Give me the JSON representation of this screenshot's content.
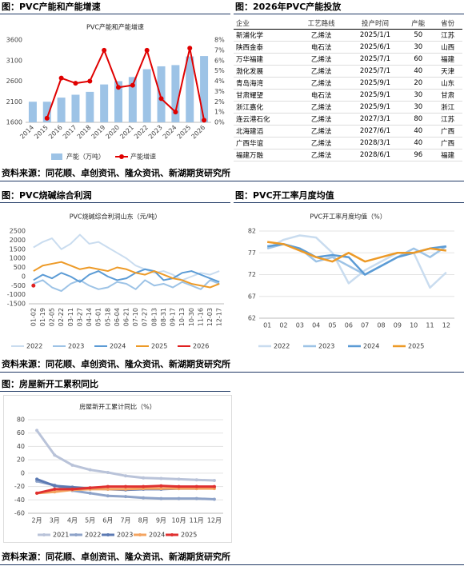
{
  "headings": [
    "图：PVC产能和产能增速",
    "图：2026年PVC产能投放",
    "图：PVC烧碱综合利润",
    "图：PVC开工率月度均值",
    "图：房屋新开工累积同比"
  ],
  "source": "资料来源：同花顺、卓创资讯、隆众资讯、新湖期货研究所",
  "table": {
    "columns": [
      "企业",
      "工艺路线",
      "投产时间",
      "产能",
      "省份"
    ],
    "rows": [
      [
        "新浦化学",
        "乙烯法",
        "2025/1/1",
        50,
        "江苏"
      ],
      [
        "陕西金泰",
        "电石法",
        "2025/6/1",
        30,
        "山西"
      ],
      [
        "万华福建",
        "乙烯法",
        "2025/7/1",
        60,
        "福建"
      ],
      [
        "渤化发展",
        "乙烯法",
        "2025/7/1",
        40,
        "天津"
      ],
      [
        "青岛海湾",
        "乙烯法",
        "2025/9/1",
        20,
        "山东"
      ],
      [
        "甘肃耀望",
        "电石法",
        "2025/9/1",
        30,
        "甘肃"
      ],
      [
        "浙江嘉化",
        "乙烯法",
        "2025/9/1",
        30,
        "浙江"
      ],
      [
        "连云港石化",
        "乙烯法",
        "2027/3/1",
        80,
        "江苏"
      ],
      [
        "北海建滔",
        "乙烯法",
        "2027/6/1",
        40,
        "广西"
      ],
      [
        "广西华谊",
        "乙烯法",
        "2028/3/1",
        40,
        "广西"
      ],
      [
        "福建万融",
        "乙烯法",
        "2028/6/1",
        96,
        "福建"
      ]
    ]
  },
  "chart_data": [
    {
      "type": "bar",
      "title": "PVC产能和产能增速",
      "grid": false,
      "markers": true,
      "categories": [
        "2014",
        "2015",
        "2016",
        "2017",
        "2018",
        "2019",
        "2020",
        "2021",
        "2022",
        "2023",
        "2024",
        "2025",
        "2026"
      ],
      "ylim": [
        1600,
        3600
      ],
      "yticks": [
        1600,
        2100,
        2600,
        3100,
        3600
      ],
      "y2lim": [
        0,
        8
      ],
      "y2ticks": [
        {
          "value": 0,
          "label": "0%"
        },
        {
          "value": 1,
          "label": "1%"
        },
        {
          "value": 2,
          "label": "2%"
        },
        {
          "value": 3,
          "label": "3%"
        },
        {
          "value": 4,
          "label": "4%"
        },
        {
          "value": 5,
          "label": "5%"
        },
        {
          "value": 6,
          "label": "6%"
        },
        {
          "value": 7,
          "label": "7%"
        },
        {
          "value": 8,
          "label": "8%"
        }
      ],
      "series": [
        {
          "name": "产能（万吨）",
          "type": "bar",
          "color": "#9dc3e6",
          "values": [
            2100,
            2100,
            2200,
            2270,
            2340,
            2520,
            2600,
            2700,
            2890,
            2960,
            2990,
            3200,
            3210
          ]
        },
        {
          "name": "产能增速",
          "type": "line",
          "axis": "y2",
          "color": "#e00000",
          "values": [
            null,
            0.4,
            4.3,
            3.8,
            4.0,
            7.0,
            3.4,
            3.6,
            7.0,
            2.3,
            1.0,
            7.2,
            0.2
          ]
        }
      ]
    },
    {
      "type": "line",
      "title": "PVC烧碱综合利润山东（元/吨）",
      "grid": false,
      "markers": false,
      "categories": [
        "01-02",
        "01-19",
        "02-05",
        "02-22",
        "03-11",
        "03-27",
        "04-14",
        "05-01",
        "05-18",
        "06-04",
        "06-21",
        "07-10",
        "07-27",
        "08-13",
        "08-31",
        "09-17",
        "10-13",
        "10-30",
        "11-16",
        "12-03",
        "12-17"
      ],
      "ylim": [
        -1500,
        2500
      ],
      "yticks": [
        -1500,
        -1000,
        -500,
        0,
        500,
        1000,
        1500,
        2000,
        2500
      ],
      "series": [
        {
          "name": "2022",
          "color": "#c9dcef",
          "values": [
            1600,
            1900,
            2100,
            1500,
            1800,
            2300,
            1800,
            1900,
            1600,
            1300,
            1000,
            600,
            400,
            200,
            300,
            100,
            -200,
            0,
            200,
            100,
            300
          ]
        },
        {
          "name": "2023",
          "color": "#9dc3e6",
          "values": [
            -400,
            -200,
            -600,
            -800,
            -400,
            -200,
            -500,
            -700,
            -600,
            -300,
            -400,
            -700,
            -200,
            -500,
            -400,
            -600,
            -300,
            -500,
            -700,
            -200,
            -400
          ]
        },
        {
          "name": "2024",
          "color": "#5b9bd5",
          "values": [
            -200,
            100,
            -100,
            200,
            0,
            -300,
            100,
            300,
            0,
            -200,
            -100,
            200,
            400,
            300,
            -200,
            -100,
            200,
            300,
            100,
            -100,
            -300
          ]
        },
        {
          "name": "2025",
          "color": "#ed9a27",
          "values": [
            300,
            600,
            700,
            800,
            600,
            400,
            500,
            400,
            300,
            500,
            400,
            200,
            100,
            300,
            100,
            -100,
            -200,
            -400,
            -500,
            -600,
            -400
          ]
        },
        {
          "name": "2026",
          "color": "#e02020",
          "values": [
            -500,
            null,
            null,
            null,
            null,
            null,
            null,
            null,
            null,
            null,
            null,
            null,
            null,
            null,
            null,
            null,
            null,
            null,
            null,
            null,
            null
          ]
        }
      ]
    },
    {
      "type": "line",
      "title": "PVC开工率月度均值（%）",
      "grid": true,
      "markers": false,
      "categories": [
        "01",
        "02",
        "03",
        "04",
        "05",
        "06",
        "07",
        "08",
        "09",
        "10",
        "11",
        "12"
      ],
      "ylim": [
        62,
        82
      ],
      "yticks": [
        62,
        67,
        72,
        77,
        82
      ],
      "series": [
        {
          "name": "2022",
          "color": "#c9dcef",
          "values": [
            78,
            80,
            81,
            80.5,
            77,
            70,
            73,
            75,
            77,
            77,
            69,
            72.5
          ]
        },
        {
          "name": "2023",
          "color": "#9dc3e6",
          "values": [
            78,
            79,
            78,
            75,
            76,
            74,
            72,
            74,
            76,
            78,
            76,
            78.5
          ]
        },
        {
          "name": "2024",
          "color": "#5b9bd5",
          "values": [
            78.5,
            79,
            78,
            76,
            76.5,
            76,
            72,
            74,
            76,
            77,
            78,
            78.5
          ]
        },
        {
          "name": "2025",
          "color": "#ed9a27",
          "values": [
            79.5,
            79,
            77.5,
            76,
            75,
            77,
            75,
            76,
            77,
            77,
            78,
            77.5
          ]
        }
      ]
    },
    {
      "type": "line",
      "title": "房屋新开工累计同比（%）",
      "grid": true,
      "markers": true,
      "categories": [
        "2月",
        "3月",
        "4月",
        "5月",
        "6月",
        "7月",
        "8月",
        "9月",
        "10月",
        "11月",
        "12月"
      ],
      "ylim": [
        -60,
        80
      ],
      "yticks": [
        -60,
        -40,
        -20,
        0,
        20,
        40,
        60,
        80
      ],
      "series": [
        {
          "name": "2021",
          "color": "#b9c3d9",
          "values": [
            64,
            27,
            12,
            5,
            1,
            -4,
            -7,
            -8,
            -9,
            -10,
            -11
          ]
        },
        {
          "name": "2022",
          "color": "#8ea3c9",
          "values": [
            -12,
            -18,
            -26,
            -30,
            -34,
            -35,
            -37,
            -38,
            -38,
            -38,
            -39
          ]
        },
        {
          "name": "2023",
          "color": "#5c7ab3",
          "values": [
            -9,
            -19,
            -21,
            -23,
            -24,
            -25,
            -24,
            -24,
            -23,
            -23,
            -21
          ]
        },
        {
          "name": "2024",
          "color": "#f4a460",
          "values": [
            -30,
            -28,
            -25,
            -24,
            -24,
            -24,
            -23,
            -23,
            -23,
            -23,
            -23
          ]
        },
        {
          "name": "2025",
          "color": "#e03030",
          "values": [
            -30,
            -24,
            -24,
            -22,
            -20,
            -20,
            -20,
            -19,
            -20,
            -20,
            -20
          ]
        }
      ]
    }
  ]
}
